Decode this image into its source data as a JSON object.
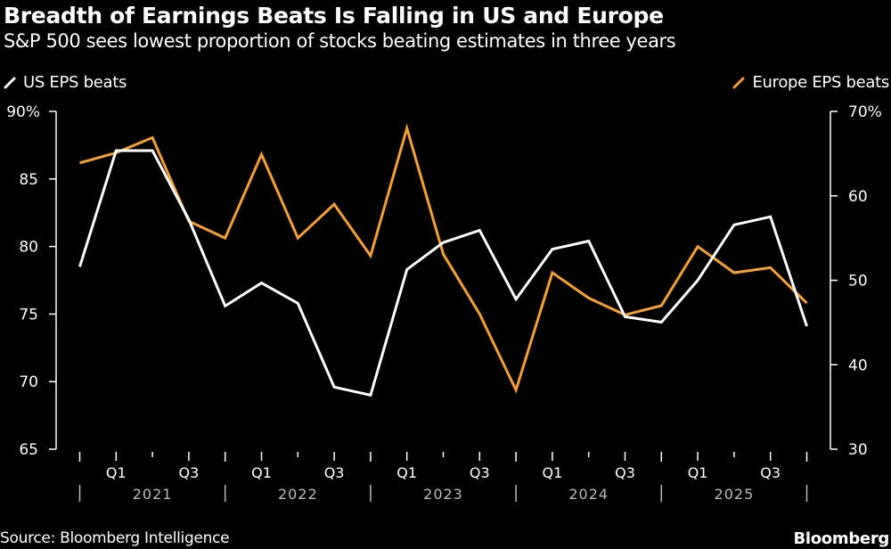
{
  "header": {
    "title": "Breadth of Earnings Beats Is Falling in US and Europe",
    "subtitle": "S&P 500 sees lowest proportion of stocks beating estimates in three years"
  },
  "footer": {
    "source": "Source: Bloomberg Intelligence",
    "brand": "Bloomberg"
  },
  "chart_data": {
    "type": "line",
    "title": "Breadth of Earnings Beats Is Falling in US and Europe",
    "subtitle": "S&P 500 sees lowest proportion of stocks beating estimates in three years",
    "xlabel": "",
    "ylabel_left": "",
    "ylabel_right": "",
    "x": [
      "2020 Q4",
      "2021 Q1",
      "2021 Q2",
      "2021 Q3",
      "2021 Q4",
      "2022 Q1",
      "2022 Q2",
      "2022 Q3",
      "2022 Q4",
      "2023 Q1",
      "2023 Q2",
      "2023 Q3",
      "2023 Q4",
      "2024 Q1",
      "2024 Q2",
      "2024 Q3",
      "2024 Q4",
      "2025 Q1",
      "2025 Q2",
      "2025 Q3",
      "2025 Q4"
    ],
    "series": [
      {
        "name": "US EPS beats",
        "axis": "left",
        "color": "#ffffff",
        "values": [
          78.5,
          87.1,
          87.1,
          82.0,
          75.6,
          77.3,
          75.8,
          69.6,
          69.0,
          78.3,
          80.3,
          81.2,
          76.1,
          79.8,
          80.4,
          74.8,
          74.4,
          77.5,
          81.6,
          82.2,
          74.1
        ]
      },
      {
        "name": "Europe EPS beats",
        "axis": "right",
        "color": "#f7a030",
        "values": [
          63.9,
          65.1,
          66.9,
          57.0,
          55.0,
          64.9,
          55.0,
          59.0,
          52.9,
          68.0,
          53.1,
          46.0,
          37.0,
          50.9,
          47.9,
          45.9,
          47.0,
          54.0,
          50.9,
          51.5,
          47.3
        ]
      }
    ],
    "y_left": {
      "range": [
        65,
        90
      ],
      "ticks": [
        65,
        70,
        75,
        80,
        85,
        90
      ],
      "tick_labels": [
        "65",
        "70",
        "75",
        "80",
        "85",
        "90%"
      ]
    },
    "y_right": {
      "range": [
        30,
        70
      ],
      "ticks": [
        30,
        40,
        50,
        60,
        70
      ],
      "tick_labels": [
        "30",
        "40",
        "50",
        "60",
        "70%"
      ]
    },
    "x_axis": {
      "quarter_labels": [
        {
          "index": 1,
          "label": "Q1"
        },
        {
          "index": 3,
          "label": "Q3"
        },
        {
          "index": 5,
          "label": "Q1"
        },
        {
          "index": 7,
          "label": "Q3"
        },
        {
          "index": 9,
          "label": "Q1"
        },
        {
          "index": 11,
          "label": "Q3"
        },
        {
          "index": 13,
          "label": "Q1"
        },
        {
          "index": 15,
          "label": "Q3"
        },
        {
          "index": 17,
          "label": "Q1"
        },
        {
          "index": 19,
          "label": "Q3"
        }
      ],
      "year_labels": [
        "2021",
        "2022",
        "2023",
        "2024",
        "2025"
      ]
    },
    "legend": [
      {
        "label": "US EPS beats",
        "color": "#ffffff",
        "placement": "top-left"
      },
      {
        "label": "Europe EPS beats",
        "color": "#f7a030",
        "placement": "top-right"
      }
    ],
    "grid": false
  }
}
